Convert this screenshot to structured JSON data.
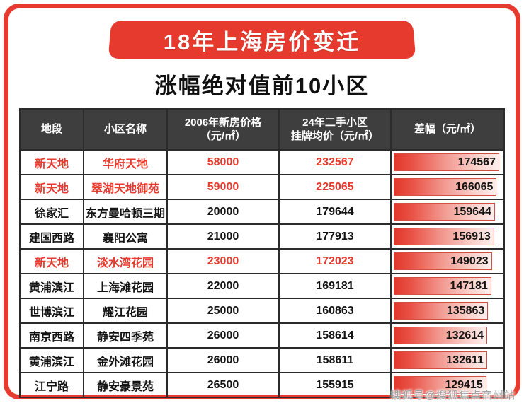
{
  "colors": {
    "accent_red": "#e73a2e",
    "header_bg": "#3e3e3e",
    "bar_border": "#d24d42"
  },
  "banner": {
    "title": "18年上海房价变迁"
  },
  "page": {
    "subtitle": "涨幅绝对值前10小区"
  },
  "watermark": "搜狐号@搜狐焦点宿州站",
  "table": {
    "headers": [
      {
        "lines": [
          "地段"
        ]
      },
      {
        "lines": [
          "小区名称"
        ]
      },
      {
        "lines": [
          "2006年新房价格",
          "（元/㎡）"
        ]
      },
      {
        "lines": [
          "24年二手小区",
          "挂牌均价（元/㎡）"
        ]
      },
      {
        "lines": [
          "差幅（元/㎡）"
        ]
      }
    ],
    "rows": [
      {
        "district": "新天地",
        "name": "华府天地",
        "price2006": "58000",
        "price2024": "232567",
        "diff": "174567",
        "highlight": true
      },
      {
        "district": "新天地",
        "name": "翠湖天地御苑",
        "price2006": "59000",
        "price2024": "225065",
        "diff": "166065",
        "highlight": true
      },
      {
        "district": "徐家汇",
        "name": "东方曼哈顿三期",
        "price2006": "20000",
        "price2024": "179644",
        "diff": "159644",
        "highlight": false
      },
      {
        "district": "建国西路",
        "name": "襄阳公寓",
        "price2006": "21000",
        "price2024": "177913",
        "diff": "156913",
        "highlight": false
      },
      {
        "district": "新天地",
        "name": "淡水湾花园",
        "price2006": "23000",
        "price2024": "172023",
        "diff": "149023",
        "highlight": true
      },
      {
        "district": "黄浦滨江",
        "name": "上海滩花园",
        "price2006": "22000",
        "price2024": "169181",
        "diff": "147181",
        "highlight": false
      },
      {
        "district": "世博滨江",
        "name": "耀江花园",
        "price2006": "25000",
        "price2024": "160863",
        "diff": "135863",
        "highlight": false
      },
      {
        "district": "南京西路",
        "name": "静安四季苑",
        "price2006": "26000",
        "price2024": "158614",
        "diff": "132614",
        "highlight": false
      },
      {
        "district": "黄浦滨江",
        "name": "金外滩花园",
        "price2006": "26000",
        "price2024": "158611",
        "diff": "132611",
        "highlight": false
      },
      {
        "district": "江宁路",
        "name": "静安豪景苑",
        "price2006": "26500",
        "price2024": "155915",
        "diff": "129415",
        "highlight": false
      }
    ]
  },
  "chart_data": {
    "type": "table",
    "title": "18年上海房价变迁",
    "subtitle": "涨幅绝对值前10小区",
    "columns": [
      "地段",
      "小区名称",
      "2006年新房价格（元/㎡）",
      "24年二手小区挂牌均价（元/㎡）",
      "差幅（元/㎡）"
    ],
    "rows": [
      [
        "新天地",
        "华府天地",
        58000,
        232567,
        174567
      ],
      [
        "新天地",
        "翠湖天地御苑",
        59000,
        225065,
        166065
      ],
      [
        "徐家汇",
        "东方曼哈顿三期",
        20000,
        179644,
        159644
      ],
      [
        "建国西路",
        "襄阳公寓",
        21000,
        177913,
        156913
      ],
      [
        "新天地",
        "淡水湾花园",
        23000,
        172023,
        149023
      ],
      [
        "黄浦滨江",
        "上海滩花园",
        22000,
        169181,
        147181
      ],
      [
        "世博滨江",
        "耀江花园",
        25000,
        160863,
        135863
      ],
      [
        "南京西路",
        "静安四季苑",
        26000,
        158614,
        132614
      ],
      [
        "黄浦滨江",
        "金外滩花园",
        26000,
        158611,
        132611
      ],
      [
        "江宁路",
        "静安豪景苑",
        26500,
        155915,
        129415
      ]
    ],
    "bar_column": "差幅（元/㎡）",
    "bar_values": [
      174567,
      166065,
      159644,
      156913,
      149023,
      147181,
      135863,
      132614,
      132611,
      129415
    ],
    "highlighted_row_indices": [
      0,
      1,
      4
    ],
    "legend_position": "none",
    "grid": true
  }
}
